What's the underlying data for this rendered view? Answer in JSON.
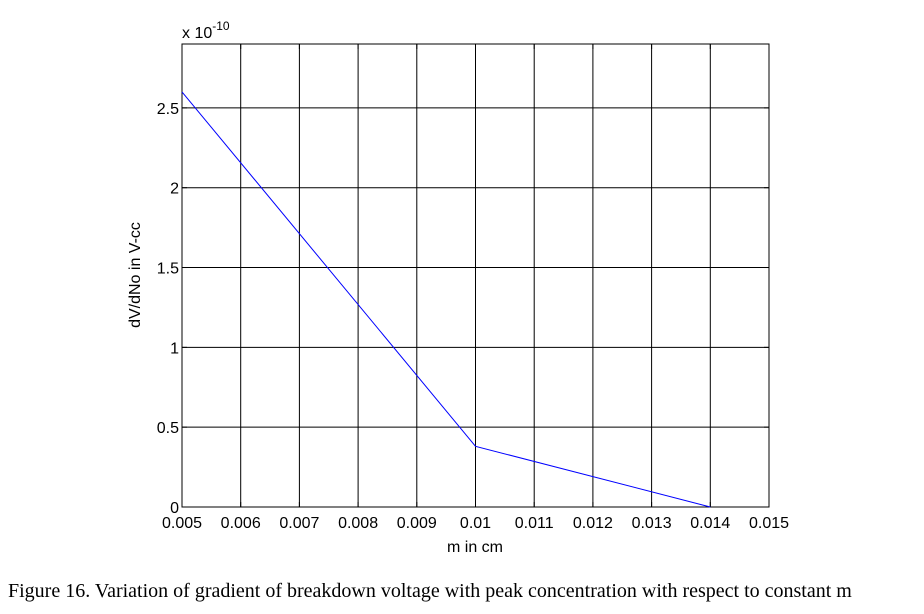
{
  "chart_data": {
    "type": "line",
    "title": "",
    "xlabel": "m in cm",
    "ylabel": "dV/dNo in V-cc",
    "y_exponent_label": "x 10",
    "y_exponent_power": "-10",
    "xlim": [
      0.005,
      0.015
    ],
    "ylim": [
      0,
      2.9
    ],
    "x_ticks": [
      0.005,
      0.006,
      0.007,
      0.008,
      0.009,
      0.01,
      0.011,
      0.012,
      0.013,
      0.014,
      0.015
    ],
    "x_tick_labels": [
      "0.005",
      "0.006",
      "0.007",
      "0.008",
      "0.009",
      "0.01",
      "0.011",
      "0.012",
      "0.013",
      "0.014",
      "0.015"
    ],
    "y_ticks": [
      0,
      0.5,
      1,
      1.5,
      2,
      2.5
    ],
    "y_tick_labels": [
      "0",
      "0.5",
      "1",
      "1.5",
      "2",
      "2.5"
    ],
    "grid": true,
    "line_color": "#0000ff",
    "series": [
      {
        "x": [
          0.005,
          0.01,
          0.014
        ],
        "y": [
          2.6,
          0.38,
          0.0
        ]
      }
    ]
  },
  "caption": "Figure 16. Variation of gradient of breakdown voltage with peak concentration with respect to constant m"
}
